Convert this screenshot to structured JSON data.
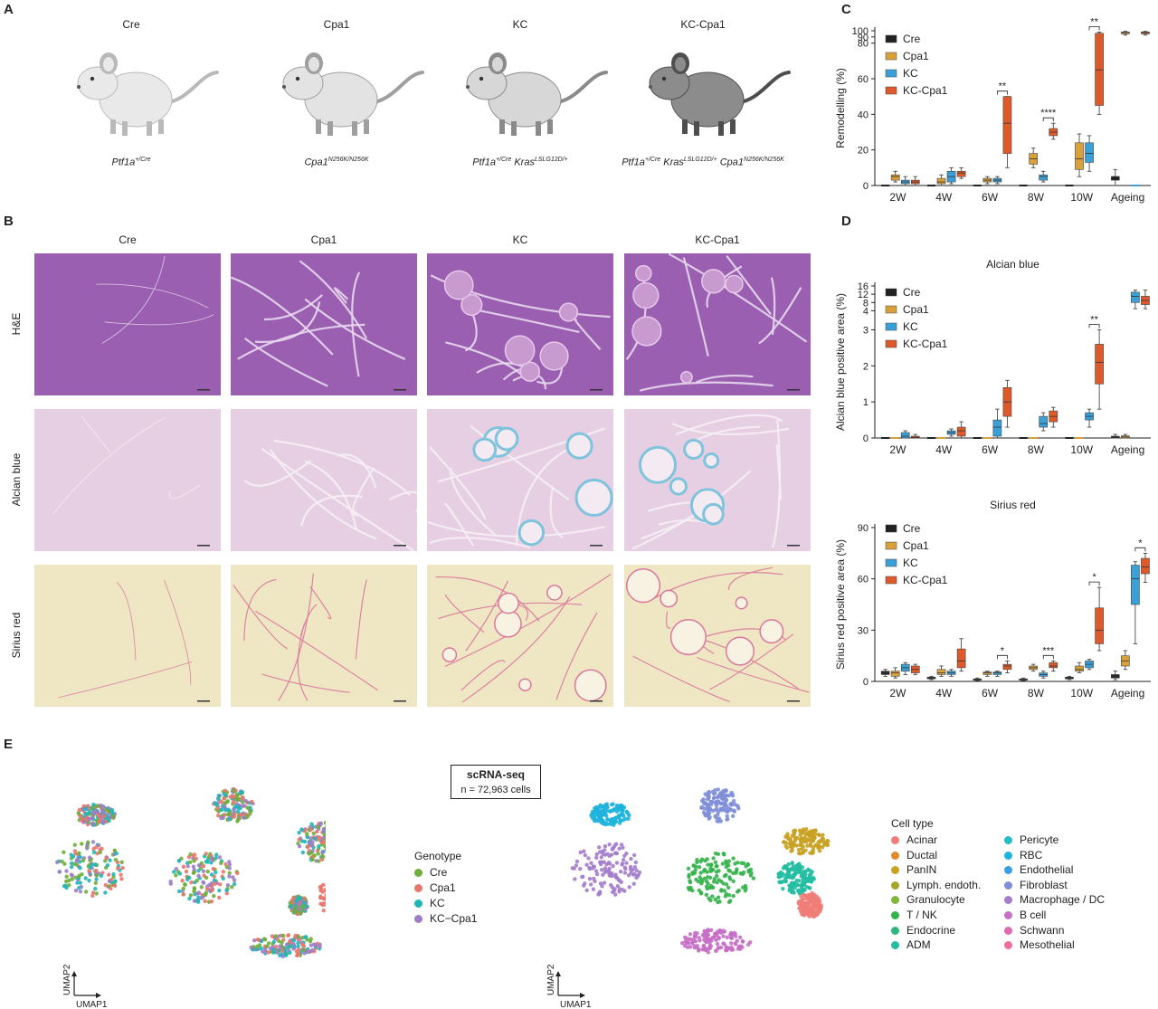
{
  "panels": {
    "A": "A",
    "B": "B",
    "C": "C",
    "D": "D",
    "E": "E"
  },
  "panel_a": {
    "mice": [
      {
        "label": "Cre",
        "genotype_html": "Ptf1a<sup>+/Cre</sup>",
        "shade": "#e9e9e9",
        "dark": "#b9b9b9"
      },
      {
        "label": "Cpa1",
        "genotype_html": "Cpa1<sup>N256K/N256K</sup>",
        "shade": "#e3e3e3",
        "dark": "#9f9f9f"
      },
      {
        "label": "KC",
        "genotype_html": "Ptf1a<sup>+/Cre</sup> Kras<sup>LSLG12D/+</sup>",
        "shade": "#d7d7d7",
        "dark": "#8a8a8a"
      },
      {
        "label": "KC-Cpa1",
        "genotype_html": "Ptf1a<sup>+/Cre</sup> Kras<sup>LSLG12D/+</sup> Cpa1<sup>N256K/N256K</sup>",
        "shade": "#8c8c8c",
        "dark": "#4e4e4e"
      }
    ]
  },
  "panel_b": {
    "columns": [
      "Cre",
      "Cpa1",
      "KC",
      "KC-Cpa1"
    ],
    "rows": [
      "H&E",
      "Alcian blue",
      "Sirius red"
    ],
    "colors": {
      "he": "#9a5fb0",
      "he_light": "#c99ad0",
      "alcian": "#e6cfe2",
      "alcian_blue": "#7fc4dc",
      "sirius": "#efe6c4",
      "sirius_red": "#d9789c"
    }
  },
  "legend_groups": [
    "Cre",
    "Cpa1",
    "KC",
    "KC-Cpa1"
  ],
  "group_colors": [
    "#222222",
    "#d9a13a",
    "#3aa0d8",
    "#de5a2a"
  ],
  "chart_data": [
    {
      "id": "C",
      "type": "box",
      "title": "",
      "ylabel": "Remodelling (%)",
      "categories": [
        "2W",
        "4W",
        "6W",
        "8W",
        "10W",
        "Ageing"
      ],
      "ylim": [
        0,
        100
      ],
      "y_ticks": [
        "0",
        "20",
        "40",
        "60",
        "80",
        "90",
        "100"
      ],
      "y_tick_values": [
        0,
        20,
        40,
        60,
        80,
        90,
        100
      ],
      "series": [
        {
          "name": "Cre",
          "boxes": [
            [
              0,
              0,
              0,
              0,
              0
            ],
            [
              0,
              0,
              0,
              0,
              0
            ],
            [
              0,
              0,
              0,
              0,
              0
            ],
            [
              0,
              0,
              0,
              0,
              0
            ],
            [
              0,
              0,
              0,
              0,
              0
            ],
            [
              0,
              3,
              5,
              5,
              9
            ]
          ]
        },
        {
          "name": "Cpa1",
          "boxes": [
            [
              2,
              3,
              5,
              6,
              8
            ],
            [
              0,
              1,
              2,
              4,
              6
            ],
            [
              1,
              2,
              3,
              4,
              5
            ],
            [
              10,
              12,
              15,
              18,
              21
            ],
            [
              5,
              9,
              15,
              24,
              29
            ],
            [
              93,
              95,
              97,
              98,
              99
            ]
          ]
        },
        {
          "name": "KC",
          "boxes": [
            [
              0,
              1,
              2,
              3,
              5
            ],
            [
              1,
              2,
              5,
              8,
              10
            ],
            [
              1,
              2,
              3,
              4,
              5
            ],
            [
              2,
              3,
              5,
              6,
              8
            ],
            [
              8,
              13,
              18,
              24,
              28
            ],
            [
              0,
              0,
              0,
              0,
              0
            ]
          ]
        },
        {
          "name": "KC-Cpa1",
          "boxes": [
            [
              0,
              1,
              2,
              3,
              5
            ],
            [
              4,
              5,
              7,
              8,
              10
            ],
            [
              10,
              18,
              35,
              50,
              50
            ],
            [
              26,
              28,
              30,
              32,
              35
            ],
            [
              40,
              45,
              65,
              96,
              98
            ],
            [
              93,
              95,
              97,
              98,
              99
            ]
          ]
        }
      ],
      "annotations": [
        {
          "category": "6W",
          "text": "**"
        },
        {
          "category": "8W",
          "text": "****"
        },
        {
          "category": "10W",
          "text": "**"
        }
      ]
    },
    {
      "id": "D1",
      "type": "box",
      "title": "Alcian blue",
      "ylabel": "Alcian blue positive area (%)",
      "categories": [
        "2W",
        "4W",
        "6W",
        "8W",
        "10W",
        "Ageing"
      ],
      "ylim": [
        0,
        16
      ],
      "y_ticks": [
        "0",
        "1",
        "2",
        "3",
        "4",
        "8",
        "12",
        "16"
      ],
      "y_tick_values": [
        0,
        1,
        2,
        3,
        4,
        8,
        12,
        16
      ],
      "series": [
        {
          "name": "Cre",
          "boxes": [
            [
              0,
              0,
              0,
              0,
              0
            ],
            [
              0,
              0,
              0,
              0,
              0
            ],
            [
              0,
              0,
              0,
              0,
              0
            ],
            [
              0,
              0,
              0,
              0,
              0
            ],
            [
              0,
              0,
              0,
              0,
              0
            ],
            [
              0,
              0,
              0.02,
              0.05,
              0.1
            ]
          ]
        },
        {
          "name": "Cpa1",
          "boxes": [
            [
              0,
              0,
              0,
              0,
              0
            ],
            [
              0,
              0,
              0,
              0,
              0
            ],
            [
              0,
              0,
              0,
              0,
              0
            ],
            [
              0,
              0,
              0,
              0,
              0
            ],
            [
              0,
              0,
              0,
              0,
              0
            ],
            [
              0,
              0,
              0.03,
              0.06,
              0.1
            ]
          ]
        },
        {
          "name": "KC",
          "boxes": [
            [
              0,
              0,
              0.05,
              0.15,
              0.2
            ],
            [
              0.05,
              0.1,
              0.15,
              0.2,
              0.25
            ],
            [
              0,
              0.05,
              0.3,
              0.5,
              0.8
            ],
            [
              0.2,
              0.3,
              0.4,
              0.6,
              0.7
            ],
            [
              0.3,
              0.5,
              0.6,
              0.7,
              0.8
            ],
            [
              5,
              8,
              11,
              13,
              14
            ]
          ]
        },
        {
          "name": "KC-Cpa1",
          "boxes": [
            [
              0,
              0,
              0.02,
              0.05,
              0.1
            ],
            [
              0,
              0.05,
              0.2,
              0.3,
              0.45
            ],
            [
              0.3,
              0.6,
              1.0,
              1.4,
              1.6
            ],
            [
              0.3,
              0.45,
              0.6,
              0.75,
              0.85
            ],
            [
              0.8,
              1.5,
              2.1,
              2.6,
              3.0
            ],
            [
              5,
              7,
              9,
              11,
              14
            ]
          ]
        }
      ],
      "annotations": [
        {
          "category": "10W",
          "text": "**"
        }
      ]
    },
    {
      "id": "D2",
      "type": "box",
      "title": "Sirius red",
      "ylabel": "Sirius red positive area (%)",
      "categories": [
        "2W",
        "4W",
        "6W",
        "8W",
        "10W",
        "Ageing"
      ],
      "ylim": [
        0,
        90
      ],
      "y_ticks": [
        "0",
        "30",
        "60",
        "90"
      ],
      "y_tick_values": [
        0,
        30,
        60,
        90
      ],
      "series": [
        {
          "name": "Cre",
          "boxes": [
            [
              3,
              4,
              5,
              6,
              7
            ],
            [
              1,
              1.5,
              2,
              2.5,
              3
            ],
            [
              0.5,
              1,
              1.2,
              1.5,
              2
            ],
            [
              0.5,
              1,
              1.2,
              1.5,
              2
            ],
            [
              1,
              1.5,
              2,
              2.5,
              3
            ],
            [
              1,
              2,
              3,
              4,
              6
            ]
          ]
        },
        {
          "name": "Cpa1",
          "boxes": [
            [
              2,
              3,
              5,
              6,
              8
            ],
            [
              3,
              4,
              5,
              7,
              9
            ],
            [
              3,
              4,
              5,
              5.5,
              6
            ],
            [
              6,
              7,
              8,
              9,
              10
            ],
            [
              5,
              6,
              7,
              9,
              11
            ],
            [
              7,
              9,
              12,
              15,
              18
            ]
          ]
        },
        {
          "name": "KC",
          "boxes": [
            [
              4,
              6,
              8,
              10,
              11
            ],
            [
              3,
              4,
              5,
              6,
              7
            ],
            [
              3,
              4,
              5,
              5.5,
              6
            ],
            [
              2,
              3,
              4,
              5,
              6
            ],
            [
              7,
              8,
              10,
              12,
              13
            ],
            [
              22,
              45,
              60,
              68,
              70
            ]
          ]
        },
        {
          "name": "KC-Cpa1",
          "boxes": [
            [
              4,
              5,
              7,
              9,
              10
            ],
            [
              6,
              8,
              12,
              19,
              25
            ],
            [
              5,
              7,
              9,
              10,
              12
            ],
            [
              6,
              8,
              9,
              11,
              12
            ],
            [
              18,
              22,
              30,
              43,
              55
            ],
            [
              58,
              63,
              67,
              72,
              75
            ]
          ]
        }
      ],
      "annotations": [
        {
          "category": "6W",
          "text": "*"
        },
        {
          "category": "8W",
          "text": "***"
        },
        {
          "category": "10W",
          "text": "*"
        },
        {
          "category": "Ageing",
          "text": "*"
        }
      ]
    }
  ],
  "panel_e": {
    "box_title": "scRNA-seq",
    "box_sub": "n = 72,963 cells",
    "axis_x": "UMAP1",
    "axis_y": "UMAP2",
    "genotype_title": "Genotype",
    "genotypes": [
      {
        "name": "Cre",
        "color": "#6fae3a"
      },
      {
        "name": "Cpa1",
        "color": "#e8776b"
      },
      {
        "name": "KC",
        "color": "#20b6b8"
      },
      {
        "name": "KC−Cpa1",
        "color": "#9f7ec7"
      }
    ],
    "celltype_title": "Cell type",
    "celltypes_col1": [
      {
        "name": "Acinar",
        "color": "#f07d78"
      },
      {
        "name": "Ductal",
        "color": "#e38a2f"
      },
      {
        "name": "PanIN",
        "color": "#c9a224"
      },
      {
        "name": "Lymph. endoth.",
        "color": "#a6a52a"
      },
      {
        "name": "Granulocyte",
        "color": "#7fb53a"
      },
      {
        "name": "T / NK",
        "color": "#34b24a"
      },
      {
        "name": "Endocrine",
        "color": "#2fb87a"
      },
      {
        "name": "ADM",
        "color": "#22bda2"
      }
    ],
    "celltypes_col2": [
      {
        "name": "Pericyte",
        "color": "#23bdc3"
      },
      {
        "name": "RBC",
        "color": "#1fb4de"
      },
      {
        "name": "Endothelial",
        "color": "#3c9ee0"
      },
      {
        "name": "Fibroblast",
        "color": "#7f8fd8"
      },
      {
        "name": "Macrophage / DC",
        "color": "#a47dcb"
      },
      {
        "name": "B cell",
        "color": "#c76fc6"
      },
      {
        "name": "Schwann",
        "color": "#df6bb2"
      },
      {
        "name": "Mesothelial",
        "color": "#ec6f9e"
      }
    ]
  }
}
